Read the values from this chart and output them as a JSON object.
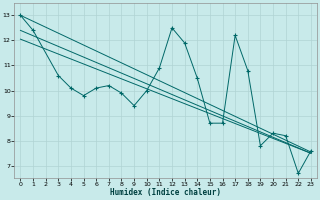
{
  "xlabel": "Humidex (Indice chaleur)",
  "background_color": "#c8eaea",
  "grid_color": "#b0d4d4",
  "line_color": "#006868",
  "xlim": [
    -0.5,
    23.5
  ],
  "ylim": [
    6.5,
    13.5
  ],
  "xticks": [
    0,
    1,
    2,
    3,
    4,
    5,
    6,
    7,
    8,
    9,
    10,
    11,
    12,
    13,
    14,
    15,
    16,
    17,
    18,
    19,
    20,
    21,
    22,
    23
  ],
  "yticks": [
    7,
    8,
    9,
    10,
    11,
    12,
    13
  ],
  "scatter_x": [
    0,
    1,
    3,
    4,
    5,
    6,
    7,
    8,
    9,
    10,
    11,
    12,
    13,
    14,
    15,
    16,
    17,
    18,
    19,
    20,
    21,
    22,
    23
  ],
  "scatter_y": [
    13.0,
    12.4,
    10.6,
    10.1,
    9.8,
    10.1,
    10.2,
    9.9,
    9.4,
    10.0,
    10.9,
    12.5,
    11.9,
    10.5,
    8.7,
    8.7,
    12.2,
    10.8,
    7.8,
    8.3,
    8.2,
    6.7,
    7.6
  ],
  "trend1_x": [
    0,
    23
  ],
  "trend1_y": [
    13.0,
    7.55
  ],
  "trend2_x": [
    0,
    23
  ],
  "trend2_y": [
    12.4,
    7.5
  ],
  "trend3_x": [
    0,
    23
  ],
  "trend3_y": [
    12.05,
    7.5
  ]
}
